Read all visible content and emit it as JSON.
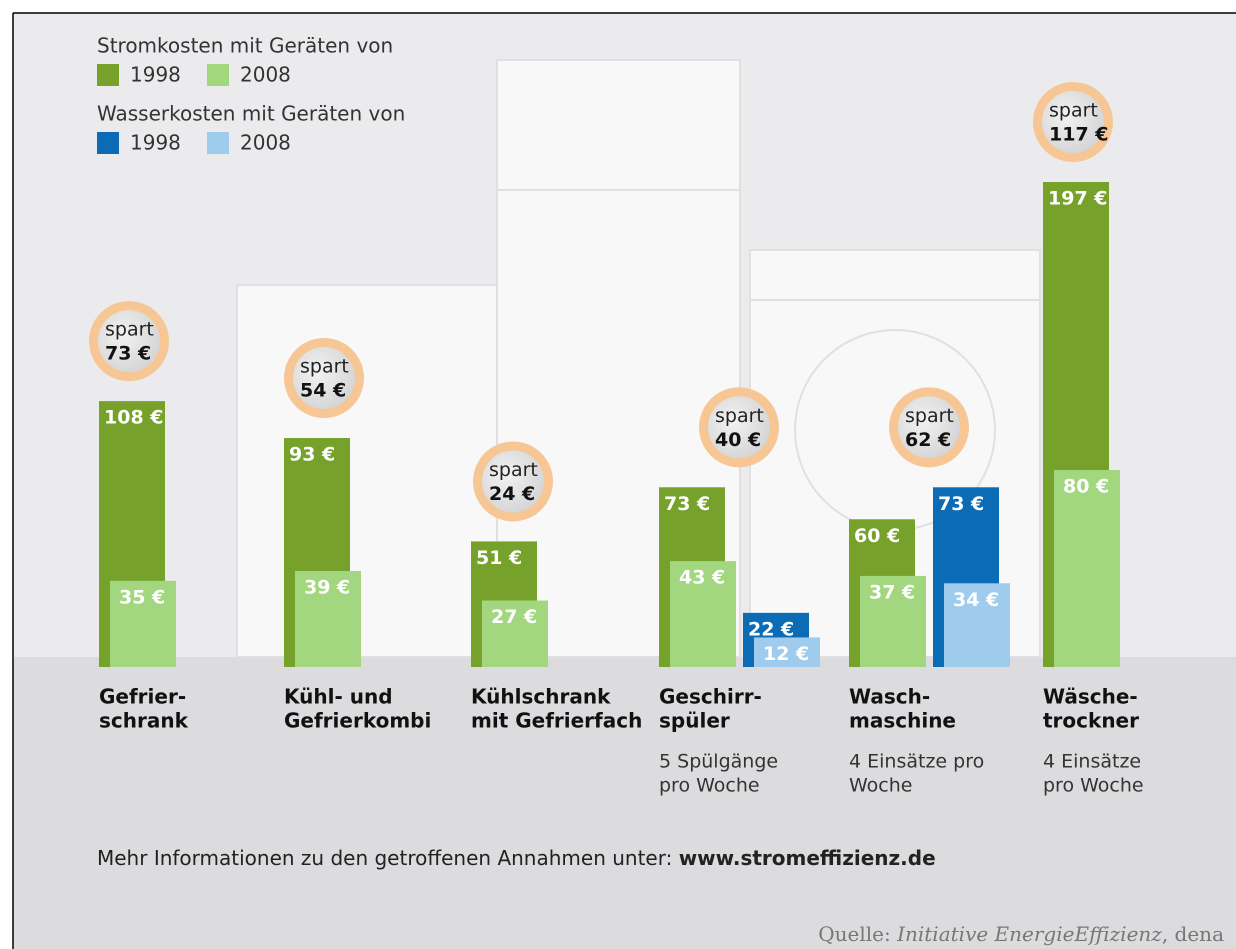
{
  "chart_data": {
    "type": "bar",
    "legend_titles": [
      "Stromkosten mit Geräten von",
      "Wasserkosten mit Geräten von"
    ],
    "categories": [
      [
        "Gefrier-",
        "schrank"
      ],
      [
        "Kühl- und",
        "Gefrierkombi"
      ],
      [
        "Kühlschrank",
        "mit Gefrierfach"
      ],
      [
        "Geschirr-",
        "spüler"
      ],
      [
        "Wasch-",
        "maschine"
      ],
      [
        "Wäsche-",
        "trockner"
      ]
    ],
    "notes": [
      null,
      null,
      null,
      [
        "5 Spülgänge",
        "pro Woche"
      ],
      [
        "4 Einsätze pro",
        "Woche"
      ],
      [
        "4 Einsätze",
        "pro Woche"
      ]
    ],
    "series": [
      {
        "name": "1998",
        "legend_group": 0,
        "color": "#76a12b",
        "values": [
          108,
          93,
          51,
          73,
          60,
          197
        ],
        "value_labels": [
          "108 €",
          "93 €",
          "51 €",
          "73 €",
          "60 €",
          "197 €"
        ]
      },
      {
        "name": "2008",
        "legend_group": 0,
        "color": "#a3d77f",
        "values": [
          35,
          39,
          27,
          43,
          37,
          80
        ],
        "value_labels": [
          "35 €",
          "39 €",
          "27 €",
          "43 €",
          "37 €",
          "80 €"
        ]
      },
      {
        "name": "1998",
        "legend_group": 1,
        "color": "#0b6cb5",
        "values": [
          null,
          null,
          null,
          22,
          73,
          null
        ],
        "value_labels": [
          null,
          null,
          null,
          "22 €",
          "73 €",
          null
        ]
      },
      {
        "name": "2008",
        "legend_group": 1,
        "color": "#9fcbec",
        "values": [
          null,
          null,
          null,
          12,
          34,
          null
        ],
        "value_labels": [
          null,
          null,
          null,
          "12 €",
          "34 €",
          null
        ]
      }
    ],
    "savings": {
      "label": "spart",
      "values": [
        73,
        54,
        24,
        40,
        62,
        117
      ],
      "value_labels": [
        "73 €",
        "54 €",
        "24 €",
        "40 €",
        "62 €",
        "117 €"
      ]
    },
    "footer": {
      "text": "Mehr Informationen zu den getroffenen Annahmen unter: ",
      "link": "www.stromeffizienz.de"
    },
    "source": {
      "prefix": "Quelle: ",
      "org": "Initiative EnergieEffizienz",
      "suffix": ", dena"
    }
  }
}
